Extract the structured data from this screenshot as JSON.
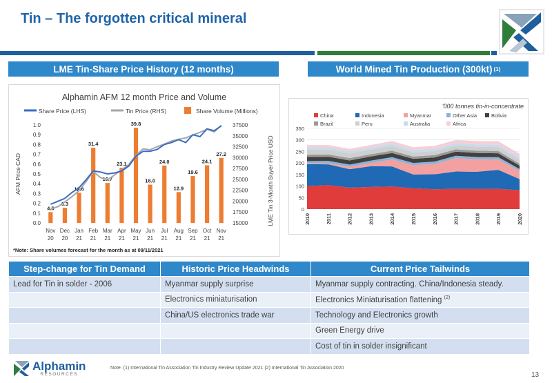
{
  "slide": {
    "title": "Tin – The forgotten critical mineral",
    "page_number": "13",
    "note": "Note: (1) International Tin Association Tin Industry Review Update 2021 (2) International Tin Association 2020",
    "colors": {
      "title": "#1f63a8",
      "header_blue": "#2f88c9",
      "band_blue": "#1f5f9c",
      "band_green": "#2f7d3a"
    }
  },
  "logo": {
    "name": "Alphamin",
    "sub": "RESOURCES"
  },
  "section_left": {
    "title": "LME Tin-Share Price History (12 months)"
  },
  "section_right": {
    "title": "World Mined Tin Production (300kt)",
    "sup": "(1)"
  },
  "chart_data": [
    {
      "type": "bar",
      "title": "Alphamin AFM 12 month Price and Volume",
      "note": "*Note: Share volumes forecast for the month as at 09/11/2021",
      "ylabel": "AFM Price CAD",
      "y2label": "LME Tin 3-Month Buyer Price USD",
      "ylim": [
        0,
        1.0
      ],
      "y2lim": [
        15000,
        37500
      ],
      "yticks": [
        "0.0",
        "0.1",
        "0.2",
        "0.3",
        "0.4",
        "0.5",
        "0.6",
        "0.7",
        "0.8",
        "0.9",
        "1.0"
      ],
      "y2ticks": [
        "15000",
        "17500",
        "20000",
        "22500",
        "25000",
        "27500",
        "30000",
        "32500",
        "35000",
        "37500"
      ],
      "categories": [
        "Nov 20",
        "Dec 20",
        "Jan 21",
        "Feb 21",
        "Mar 21",
        "Apr 21",
        "May 21",
        "Jun 21",
        "Jul 21",
        "Aug 21",
        "Sep 21",
        "Oct 21",
        "Nov 21"
      ],
      "cat_top": [
        "Nov",
        "Dec",
        "Jan",
        "Feb",
        "Mar",
        "Apr",
        "May",
        "Jun",
        "Jul",
        "Aug",
        "Sep",
        "Oct",
        "Nov"
      ],
      "cat_bottom": [
        "20",
        "20",
        "21",
        "21",
        "21",
        "21",
        "21",
        "21",
        "21",
        "21",
        "21",
        "21",
        "21"
      ],
      "legend": [
        "Share Price (LHS)",
        "Tin Price (RHS)",
        "Share Volume (Millions)"
      ],
      "colors": {
        "share": "#3a6cc4",
        "tin": "#a6a6a6",
        "volume": "#ed7d31"
      },
      "series": [
        {
          "name": "Share Volume (Millions)",
          "values": [
            4.5,
            6.3,
            12.6,
            31.4,
            16.7,
            23.1,
            39.8,
            16.0,
            24.0,
            12.9,
            19.6,
            24.1,
            27.2
          ],
          "labels": [
            "4.5",
            "6.3",
            "12.6",
            "31.4",
            "16.7",
            "23.1",
            "39.8",
            "16.0",
            "24.0",
            "12.9",
            "19.6",
            "24.1",
            "27.2"
          ]
        },
        {
          "name": "Share Price (LHS)",
          "x": [
            0,
            0.5,
            1,
            1.5,
            2,
            2.5,
            3,
            3.5,
            4,
            4.5,
            5,
            5.5,
            6,
            6.5,
            7,
            7.5,
            8,
            8.5,
            9,
            9.5,
            10,
            10.5,
            11,
            11.5,
            12
          ],
          "values": [
            0.19,
            0.22,
            0.25,
            0.31,
            0.36,
            0.44,
            0.53,
            0.52,
            0.5,
            0.51,
            0.53,
            0.58,
            0.68,
            0.73,
            0.73,
            0.75,
            0.8,
            0.82,
            0.85,
            0.82,
            0.9,
            0.88,
            0.96,
            0.94,
            0.99
          ]
        },
        {
          "name": "Tin Price (RHS)",
          "x": [
            0,
            0.5,
            1,
            1.5,
            2,
            2.5,
            3,
            3.5,
            4,
            4.5,
            5,
            5.5,
            6,
            6.5,
            7,
            7.5,
            8,
            8.5,
            9,
            9.5,
            10,
            10.5,
            11,
            11.5,
            12
          ],
          "values": [
            18200,
            18700,
            19800,
            21000,
            22400,
            24500,
            26800,
            25400,
            24900,
            26000,
            27200,
            28400,
            30500,
            32000,
            31800,
            32500,
            33100,
            33800,
            34200,
            34500,
            35200,
            35800,
            36500,
            35900,
            37400
          ]
        }
      ]
    },
    {
      "type": "area",
      "subtitle": "'000 tonnes tin-in-concentrate",
      "ylim": [
        0,
        350
      ],
      "yticks": [
        "0",
        "50",
        "100",
        "150",
        "200",
        "250",
        "300",
        "350"
      ],
      "x": [
        "2010",
        "2011",
        "2012",
        "2013",
        "2014",
        "2015",
        "2016",
        "2017",
        "2018",
        "2019",
        "2020"
      ],
      "series": [
        {
          "name": "China",
          "color": "#e03c3c",
          "values": [
            100,
            104,
            93,
            96,
            98,
            90,
            86,
            88,
            87,
            88,
            82
          ]
        },
        {
          "name": "Indonesia",
          "color": "#1f69b5",
          "values": [
            95,
            90,
            80,
            90,
            87,
            60,
            65,
            75,
            75,
            82,
            48
          ]
        },
        {
          "name": "Myanmar",
          "color": "#f2a0a0",
          "values": [
            3,
            5,
            10,
            14,
            30,
            40,
            45,
            58,
            54,
            45,
            35
          ]
        },
        {
          "name": "Other Asia",
          "color": "#8ab4d6",
          "values": [
            10,
            10,
            10,
            10,
            10,
            10,
            10,
            10,
            10,
            10,
            9
          ]
        },
        {
          "name": "Bolivia",
          "color": "#404040",
          "values": [
            18,
            18,
            18,
            18,
            18,
            18,
            18,
            18,
            17,
            17,
            14
          ]
        },
        {
          "name": "Brazil",
          "color": "#9a9a9a",
          "values": [
            10,
            10,
            10,
            10,
            10,
            10,
            10,
            10,
            10,
            10,
            9
          ]
        },
        {
          "name": "Peru",
          "color": "#cfcfcf",
          "values": [
            22,
            21,
            20,
            20,
            20,
            18,
            17,
            17,
            17,
            17,
            18
          ]
        },
        {
          "name": "Australia",
          "color": "#c6dcee",
          "values": [
            10,
            10,
            10,
            10,
            10,
            10,
            10,
            10,
            10,
            10,
            10
          ]
        },
        {
          "name": "Africa",
          "color": "#f6cfd6",
          "values": [
            10,
            10,
            10,
            10,
            12,
            12,
            13,
            14,
            15,
            15,
            15
          ]
        }
      ]
    }
  ],
  "table": {
    "headers": [
      "Step-change for Tin Demand",
      "Historic Price Headwinds",
      "Current Price Tailwinds"
    ],
    "rows": [
      [
        "Lead for Tin in solder - 2006",
        "Myanmar supply surprise",
        "Myanmar supply contracting. China/Indonesia steady."
      ],
      [
        "",
        "Electronics miniaturisation",
        "Electronics Miniaturisation flattening"
      ],
      [
        "",
        "China/US electronics trade war",
        "Technology and Electronics growth"
      ],
      [
        "",
        "",
        "Green Energy drive"
      ],
      [
        "",
        "",
        "Cost of tin in solder insignificant"
      ]
    ],
    "row2_col3_sup": "(2)"
  }
}
